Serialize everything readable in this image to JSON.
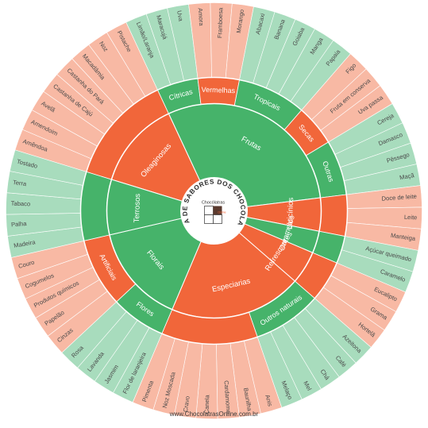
{
  "title": "RODA DE SABORES DOS CHOCOLATES",
  "logo_text": "Chocólatras",
  "logo_subtext": "Online",
  "footer": "www.ChocolatrasOnline.com.br",
  "colors": {
    "orange": "#f1663a",
    "green": "#46b36a",
    "salmon": "#f8b9a4",
    "mint": "#a8dcbd",
    "center": "#ffffff",
    "text_dark": "#4a4a4a",
    "text_light": "#ffffff"
  },
  "categories": [
    {
      "label": "Oleaginosas",
      "color": "orange",
      "subs": [
        {
          "label": "",
          "color": "orange",
          "leaves": [
            "Amêndoa",
            "Amendoim",
            "Avelã",
            "Castanha de Cajú",
            "Castanha do Pará",
            "Macadâmia",
            "Noz",
            "Pistache"
          ]
        }
      ]
    },
    {
      "label": "Frutas",
      "color": "green",
      "subs": [
        {
          "label": "Cítricas",
          "color": "green",
          "leaves": [
            "Limão/Laranja",
            "Maracujá",
            "Uva"
          ]
        },
        {
          "label": "Vermelhas",
          "color": "orange",
          "leaves": [
            "Amora",
            "Framboesa",
            "Morango"
          ]
        },
        {
          "label": "Tropicais",
          "color": "green",
          "leaves": [
            "Abacaxi",
            "Banana",
            "Goiaba",
            "Manga",
            "Papaia"
          ]
        },
        {
          "label": "Secas",
          "color": "orange",
          "leaves": [
            "Figo",
            "Fruta em conserva",
            "Uva passa"
          ]
        },
        {
          "label": "Outras",
          "color": "green",
          "leaves": [
            "Cereja",
            "Damasco",
            "Pêssego",
            "Maçã"
          ]
        }
      ]
    },
    {
      "label": "Laticínios",
      "color": "orange",
      "subs": [
        {
          "label": "",
          "color": "orange",
          "leaves": [
            "Doce de leite",
            "Leite",
            "Manteiga"
          ]
        }
      ]
    },
    {
      "label": "Caramelos",
      "color": "green",
      "subs": [
        {
          "label": "",
          "color": "green",
          "leaves": [
            "Açúcar queimado",
            "Caramelo"
          ]
        }
      ]
    },
    {
      "label": "Refrescantes",
      "color": "orange",
      "subs": [
        {
          "label": "",
          "color": "orange",
          "leaves": [
            "Eucalipto",
            "Grama",
            "Hortelã"
          ]
        }
      ]
    },
    {
      "label": "Especiarias",
      "color": "orange",
      "subs": [
        {
          "label": "Outros naturais",
          "color": "green",
          "leaves": [
            "Azeitona",
            "Café",
            "Chá",
            "Mel",
            "Melaço"
          ]
        },
        {
          "label": "",
          "color": "orange",
          "leaves": [
            "Anis",
            "Baunilha",
            "Cardamomo",
            "Canela",
            "Cravo",
            "Noz Moscada",
            "Pimenta"
          ]
        }
      ]
    },
    {
      "label": "Florais",
      "color": "green",
      "subs": [
        {
          "label": "Flores",
          "color": "green",
          "leaves": [
            "Flor de laranjeira",
            "Jasmim",
            "Lavanda",
            "Rosa"
          ]
        },
        {
          "label": "Artificiais",
          "color": "orange",
          "leaves": [
            "Cinzas",
            "Papelão",
            "Produtos químicos",
            "Cogumelos",
            "Couro"
          ]
        }
      ]
    },
    {
      "label": "Terrosos",
      "color": "green",
      "subs": [
        {
          "label": "",
          "color": "green",
          "leaves": [
            "Madeira",
            "Palha",
            "Tabaco",
            "Terra",
            "Tostado"
          ]
        }
      ]
    }
  ]
}
